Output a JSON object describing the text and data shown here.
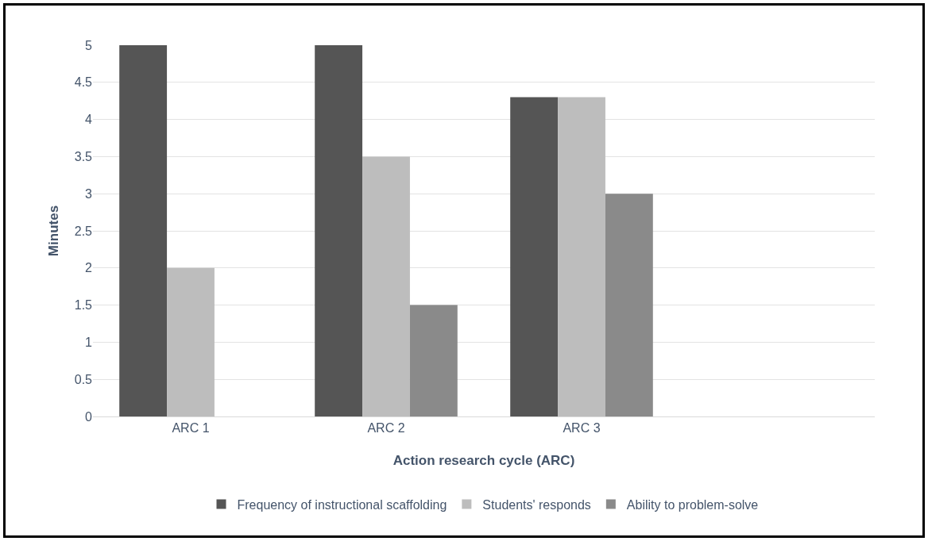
{
  "chart_data": {
    "type": "bar",
    "xlabel": "Action research cycle (ARC)",
    "ylabel": "Minutes",
    "categories": [
      "ARC 1",
      "ARC 2",
      "ARC 3",
      null
    ],
    "series": [
      {
        "name": "Frequency of instructional scaffolding",
        "color": "#555555",
        "values": [
          5,
          5,
          4.3,
          null
        ]
      },
      {
        "name": "Students' responds",
        "color": "#bdbdbd",
        "values": [
          2,
          3.5,
          4.3,
          null
        ]
      },
      {
        "name": "Ability to problem-solve",
        "color": "#8a8a8a",
        "values": [
          0,
          1.5,
          3,
          null
        ]
      }
    ],
    "ylim": [
      0,
      5
    ],
    "yticks": [
      0,
      0.5,
      1,
      1.5,
      2,
      2.5,
      3,
      3.5,
      4,
      4.5,
      5
    ],
    "grid": "y",
    "legend": "bottom"
  }
}
